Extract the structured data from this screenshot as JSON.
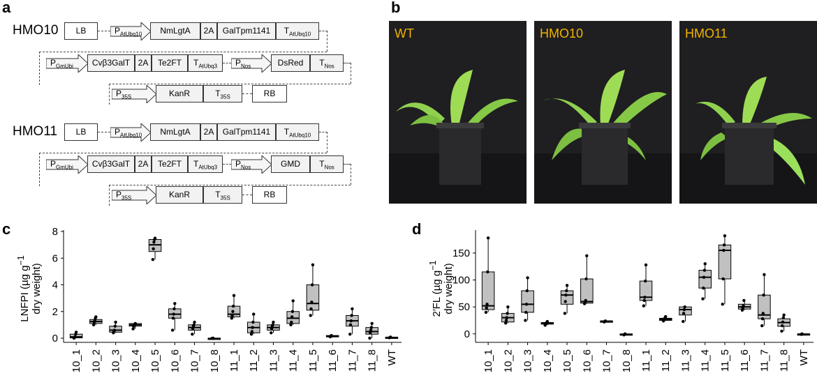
{
  "panels": {
    "a": "a",
    "b": "b",
    "c": "c",
    "d": "d"
  },
  "constructs": [
    {
      "name": "HMO10",
      "row1": [
        "LB",
        "NmLgtA",
        "2A",
        "GalTpm1141"
      ],
      "row1_promoter": {
        "main": "P",
        "sub": "AtUbq10"
      },
      "row1_terminator": {
        "main": "T",
        "sub": "AtUbq10"
      },
      "row2_promoter1": {
        "main": "P",
        "sub": "GmUbi"
      },
      "row2": [
        "Cvβ3GalT",
        "2A",
        "Te2FT"
      ],
      "row2_terminator1": {
        "main": "T",
        "sub": "AtUbq3"
      },
      "row2_promoter2": {
        "main": "P",
        "sub": "Nos"
      },
      "row2_gene2": "DsRed",
      "row2_terminator2": {
        "main": "T",
        "sub": "Nos"
      },
      "row3_promoter": {
        "main": "P",
        "sub": "35S"
      },
      "row3_gene": "KanR",
      "row3_terminator": {
        "main": "T",
        "sub": "35S"
      },
      "row3_border": "RB"
    },
    {
      "name": "HMO11",
      "row1": [
        "LB",
        "NmLgtA",
        "2A",
        "GalTpm1141"
      ],
      "row1_promoter": {
        "main": "P",
        "sub": "AtUbq10"
      },
      "row1_terminator": {
        "main": "T",
        "sub": "AtUbq10"
      },
      "row2_promoter1": {
        "main": "P",
        "sub": "GmUbi"
      },
      "row2": [
        "Cvβ3GalT",
        "2A",
        "Te2FT"
      ],
      "row2_terminator1": {
        "main": "T",
        "sub": "AtUbq3"
      },
      "row2_promoter2": {
        "main": "P",
        "sub": "Nos"
      },
      "row2_gene2": "GMD",
      "row2_terminator2": {
        "main": "T",
        "sub": "Nos"
      },
      "row3_promoter": {
        "main": "P",
        "sub": "35S"
      },
      "row3_gene": "KanR",
      "row3_terminator": {
        "main": "T",
        "sub": "35S"
      },
      "row3_border": "RB"
    }
  ],
  "photos": [
    "WT",
    "HMO10",
    "HMO11"
  ],
  "colors": {
    "box_fill": "#c0c0c0",
    "photo_label": "#f0b400",
    "leaf": "#8fd14f",
    "pot": "#2a2a2c"
  },
  "chart_data": [
    {
      "type": "box",
      "ylabel_line1": "LNFPI (µg g",
      "ylabel_sup": "−1",
      "ylabel_line2": "dry weight)",
      "ylim": [
        0,
        8
      ],
      "yticks": [
        0,
        2,
        4,
        6,
        8
      ],
      "categories": [
        "10_1",
        "10_2",
        "10_3",
        "10_4",
        "10_5",
        "10_6",
        "10_7",
        "10_8",
        "11_1",
        "11_2",
        "11_3",
        "11_4",
        "11_5",
        "11_6",
        "11_7",
        "11_8",
        "WT"
      ],
      "boxes": [
        {
          "min": 0.0,
          "q1": 0.02,
          "median": 0.1,
          "q3": 0.3,
          "max": 0.45,
          "points": [
            0.0,
            0.05,
            0.1,
            0.3,
            0.45
          ]
        },
        {
          "min": 1.0,
          "q1": 1.1,
          "median": 1.25,
          "q3": 1.4,
          "max": 1.6,
          "points": [
            1.0,
            1.2,
            1.3,
            1.5,
            1.6
          ]
        },
        {
          "min": 0.4,
          "q1": 0.45,
          "median": 0.6,
          "q3": 0.9,
          "max": 1.2,
          "points": [
            0.4,
            0.5,
            0.6,
            0.9,
            1.2
          ]
        },
        {
          "min": 0.7,
          "q1": 0.9,
          "median": 1.0,
          "q3": 1.1,
          "max": 1.1,
          "points": [
            0.7,
            0.9,
            1.0,
            1.05,
            1.1
          ]
        },
        {
          "min": 5.9,
          "q1": 6.5,
          "median": 7.0,
          "q3": 7.4,
          "max": 7.5,
          "points": [
            5.9,
            6.7,
            7.2,
            7.4,
            7.5
          ]
        },
        {
          "min": 0.6,
          "q1": 1.5,
          "median": 1.8,
          "q3": 2.2,
          "max": 2.6,
          "points": [
            0.6,
            1.5,
            1.8,
            2.2,
            2.6
          ]
        },
        {
          "min": 0.3,
          "q1": 0.6,
          "median": 0.8,
          "q3": 1.0,
          "max": 1.2,
          "points": [
            0.3,
            0.7,
            0.9,
            1.0,
            1.2
          ]
        },
        {
          "min": -0.05,
          "q1": -0.03,
          "median": -0.02,
          "q3": 0.0,
          "max": 0.0,
          "points": [
            -0.02,
            -0.01,
            0.0
          ]
        },
        {
          "min": 1.5,
          "q1": 1.6,
          "median": 1.8,
          "q3": 2.4,
          "max": 3.2,
          "points": [
            1.5,
            1.7,
            2.0,
            2.4,
            3.2
          ]
        },
        {
          "min": 0.3,
          "q1": 0.4,
          "median": 0.8,
          "q3": 1.2,
          "max": 1.8,
          "points": [
            0.3,
            0.5,
            0.8,
            1.2,
            1.8
          ]
        },
        {
          "min": 0.4,
          "q1": 0.6,
          "median": 0.8,
          "q3": 1.0,
          "max": 1.2,
          "points": [
            0.4,
            0.7,
            0.9,
            1.0,
            1.2
          ]
        },
        {
          "min": 1.0,
          "q1": 1.1,
          "median": 1.5,
          "q3": 2.0,
          "max": 2.8,
          "points": [
            1.0,
            1.2,
            1.6,
            2.0,
            2.8
          ]
        },
        {
          "min": 1.7,
          "q1": 2.1,
          "median": 2.6,
          "q3": 4.0,
          "max": 5.5,
          "points": [
            1.7,
            2.2,
            2.7,
            4.0,
            5.5
          ]
        },
        {
          "min": 0.05,
          "q1": 0.1,
          "median": 0.15,
          "q3": 0.2,
          "max": 0.2,
          "points": [
            0.1,
            0.15,
            0.2
          ]
        },
        {
          "min": 0.3,
          "q1": 0.9,
          "median": 1.3,
          "q3": 1.7,
          "max": 2.2,
          "points": [
            0.3,
            1.0,
            1.3,
            1.7,
            2.2
          ]
        },
        {
          "min": 0.0,
          "q1": 0.3,
          "median": 0.5,
          "q3": 0.8,
          "max": 1.1,
          "points": [
            0.0,
            0.4,
            0.6,
            0.8,
            1.1
          ]
        },
        {
          "min": 0.0,
          "q1": 0.03,
          "median": 0.05,
          "q3": 0.08,
          "max": 0.1,
          "points": [
            0.03,
            0.05,
            0.08
          ]
        }
      ]
    },
    {
      "type": "box",
      "ylabel_line1": "2′FL (µg g",
      "ylabel_sup": "−1",
      "ylabel_line2": "dry weight)",
      "ylim": [
        -8,
        190
      ],
      "yticks": [
        0,
        50,
        100,
        150
      ],
      "categories": [
        "10_1",
        "10_2",
        "10_3",
        "10_4",
        "10_5",
        "10_6",
        "10_7",
        "10_8",
        "11_1",
        "11_2",
        "11_3",
        "11_4",
        "11_5",
        "11_6",
        "11_7",
        "11_8",
        "WT"
      ],
      "boxes": [
        {
          "min": 40,
          "q1": 45,
          "median": 52,
          "q3": 115,
          "max": 178,
          "points": [
            40,
            48,
            55,
            115,
            178
          ]
        },
        {
          "min": 20,
          "q1": 22,
          "median": 30,
          "q3": 38,
          "max": 50,
          "points": [
            20,
            25,
            30,
            38,
            50
          ]
        },
        {
          "min": 25,
          "q1": 40,
          "median": 55,
          "q3": 80,
          "max": 104,
          "points": [
            25,
            40,
            55,
            80,
            104
          ]
        },
        {
          "min": 16,
          "q1": 18,
          "median": 20,
          "q3": 21,
          "max": 23,
          "points": [
            16,
            18,
            20,
            21,
            23
          ]
        },
        {
          "min": 38,
          "q1": 55,
          "median": 72,
          "q3": 80,
          "max": 90,
          "points": [
            38,
            60,
            72,
            80,
            90
          ]
        },
        {
          "min": 56,
          "q1": 57,
          "median": 60,
          "q3": 102,
          "max": 145,
          "points": [
            56,
            58,
            62,
            102,
            145
          ]
        },
        {
          "min": 22,
          "q1": 23,
          "median": 23.5,
          "q3": 24,
          "max": 25,
          "points": [
            22,
            23,
            24
          ]
        },
        {
          "min": -3,
          "q1": -2,
          "median": -1,
          "q3": 0,
          "max": 0,
          "points": [
            -2,
            -1,
            0
          ]
        },
        {
          "min": 52,
          "q1": 62,
          "median": 68,
          "q3": 98,
          "max": 128,
          "points": [
            52,
            62,
            68,
            98,
            128
          ]
        },
        {
          "min": 24,
          "q1": 25,
          "median": 27,
          "q3": 29,
          "max": 32,
          "points": [
            24,
            26,
            28,
            30,
            32
          ]
        },
        {
          "min": 23,
          "q1": 35,
          "median": 45,
          "q3": 50,
          "max": 50,
          "points": [
            23,
            38,
            45,
            50
          ]
        },
        {
          "min": 65,
          "q1": 85,
          "median": 105,
          "q3": 118,
          "max": 130,
          "points": [
            65,
            85,
            105,
            118,
            130
          ]
        },
        {
          "min": 55,
          "q1": 102,
          "median": 155,
          "q3": 165,
          "max": 182,
          "points": [
            55,
            102,
            155,
            165,
            182
          ]
        },
        {
          "min": 44,
          "q1": 46,
          "median": 50,
          "q3": 55,
          "max": 62,
          "points": [
            44,
            48,
            52,
            62
          ]
        },
        {
          "min": 15,
          "q1": 28,
          "median": 35,
          "q3": 72,
          "max": 110,
          "points": [
            15,
            28,
            38,
            72,
            110
          ]
        },
        {
          "min": 5,
          "q1": 14,
          "median": 21,
          "q3": 28,
          "max": 35,
          "points": [
            5,
            15,
            22,
            30,
            35
          ]
        },
        {
          "min": -2,
          "q1": -1,
          "median": -0.5,
          "q3": 0,
          "max": 0,
          "points": [
            -1,
            0
          ]
        }
      ]
    }
  ]
}
